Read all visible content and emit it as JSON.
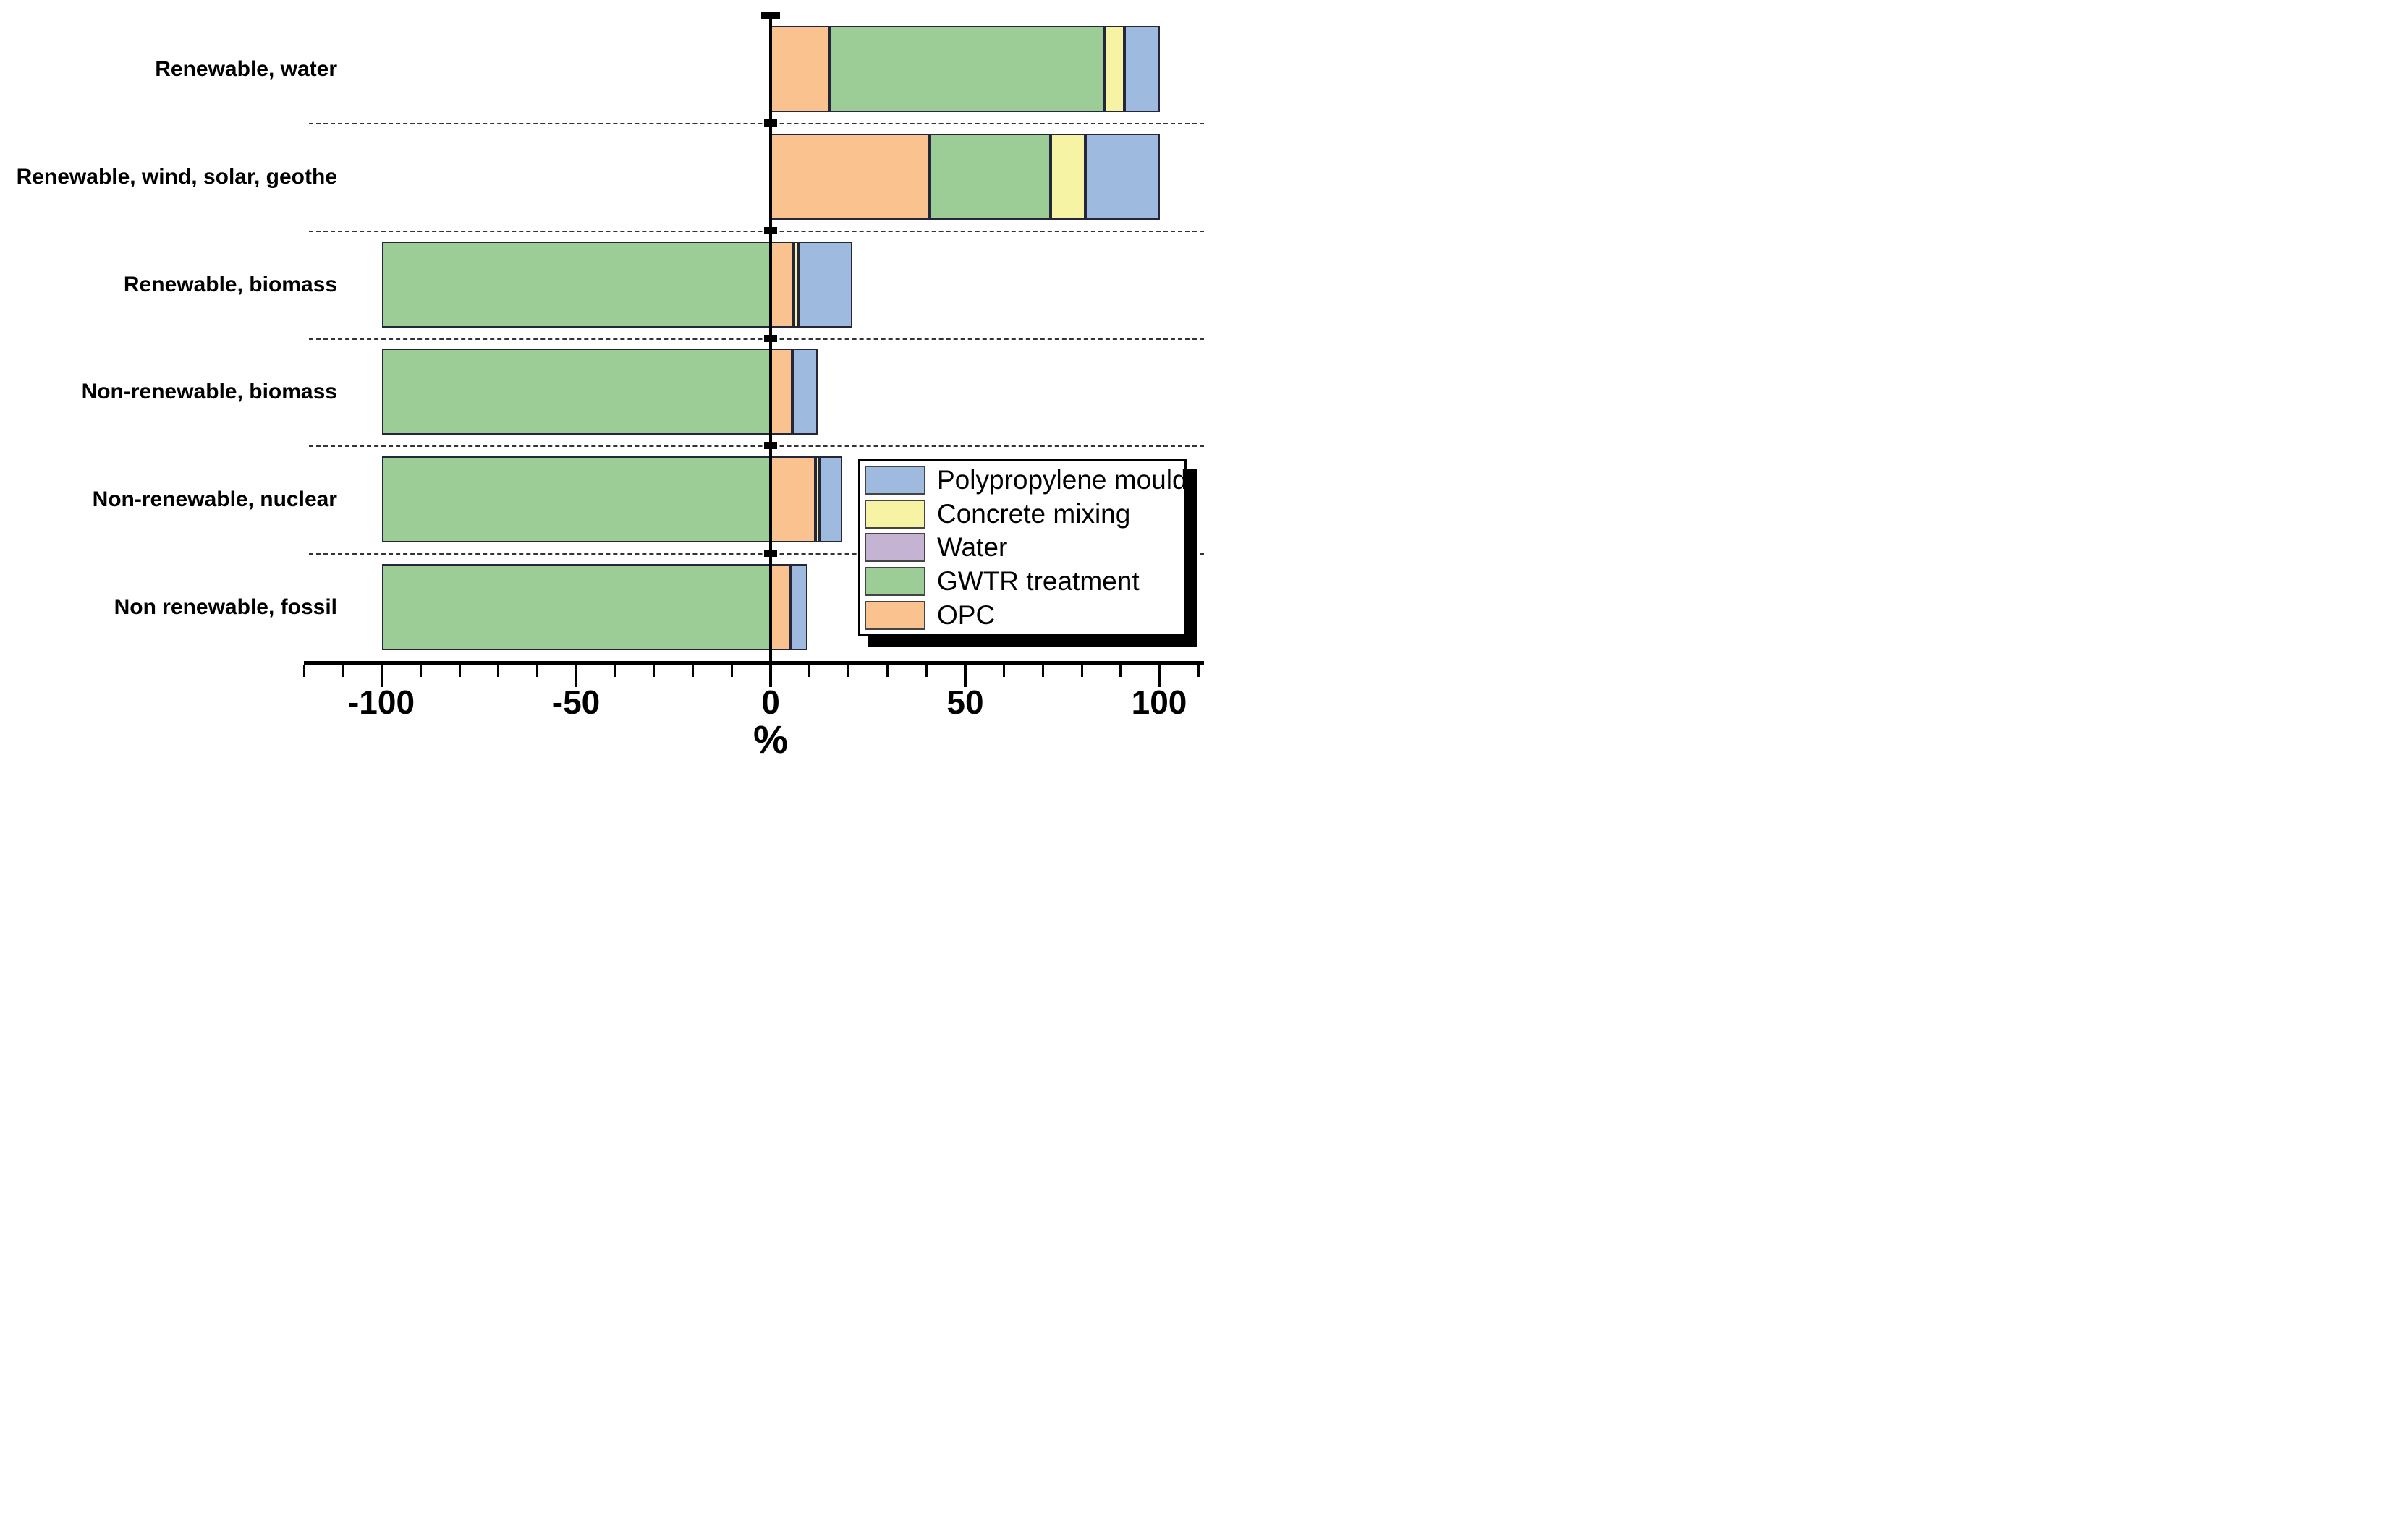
{
  "chart_data": {
    "type": "bar",
    "orientation": "horizontal",
    "stacked": true,
    "title": "",
    "xlabel": "%",
    "xlim": [
      -120,
      110
    ],
    "x_tick_labels": [
      "-100",
      "-50",
      "0",
      "50",
      "100"
    ],
    "x_tick_values": [
      -100,
      -50,
      0,
      50,
      100
    ],
    "x_minor_tick_step": 10,
    "grid": "dashed horizontal separator lines between categories",
    "categories": [
      "Renewable, water",
      "Renewable, wind, solar, geothe",
      "Renewable, biomass",
      "Non-renewable, biomass",
      "Non-renewable, nuclear",
      "Non renewable, fossil"
    ],
    "stack_order_from_zero": [
      "OPC",
      "GWTR treatment",
      "Water",
      "Concrete mixing",
      "Polypropylene mould"
    ],
    "series": [
      {
        "name": "Polypropylene mould",
        "color": "#9FBADF",
        "values": [
          9,
          19,
          14,
          6.5,
          6,
          4.5
        ]
      },
      {
        "name": "Concrete mixing",
        "color": "#F7F3A4",
        "values": [
          5,
          9,
          1,
          0,
          1,
          0
        ]
      },
      {
        "name": "Water",
        "color": "#C4B3D3",
        "values": [
          0,
          0,
          0,
          0,
          0,
          0
        ]
      },
      {
        "name": "GWTR treatment",
        "color": "#9CCD96",
        "values": [
          71,
          31,
          -100,
          -100,
          -100,
          -100
        ]
      },
      {
        "name": "OPC",
        "color": "#F9C28E",
        "values": [
          15,
          41,
          6,
          5.5,
          11.5,
          5
        ]
      }
    ],
    "legend": {
      "position": "middle-right",
      "entries": [
        "Polypropylene mould",
        "Concrete mixing",
        "Water",
        "GWTR treatment",
        "OPC"
      ]
    }
  },
  "styles": {
    "background": "#FFFFFF",
    "text_color": "#000000",
    "axis_color": "#000000",
    "separator_color": "#333333",
    "bar_border_color": "#26263B",
    "legend_shadow_color": "#000000"
  }
}
